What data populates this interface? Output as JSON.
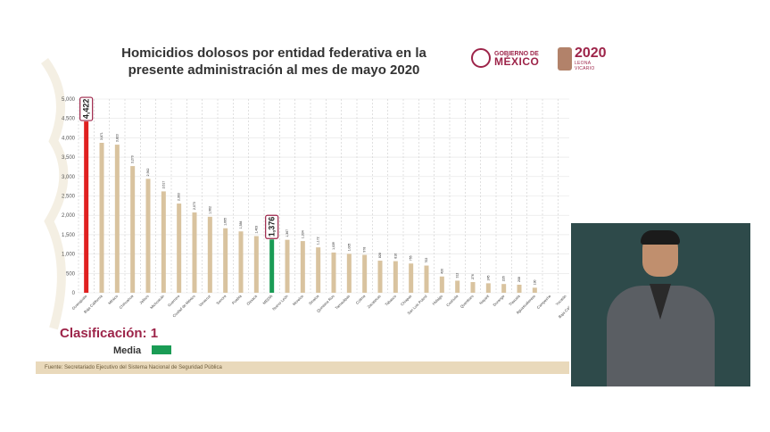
{
  "slide": {
    "title_line1": "Homicidios dolosos por entidad federativa en la",
    "title_line2": "presente administración al mes de mayo 2020",
    "gob_line1": "GOBIERNO DE",
    "gob_line2": "MÉXICO",
    "year_logo": "2020",
    "year_logo_sub": "LEONA VICARIO",
    "clasificacion": "Clasificación: 1",
    "media_label": "Media",
    "footer": "Fuente: Secretariado Ejecutivo del Sistema Nacional de Seguridad Pública"
  },
  "colors": {
    "highlight": "#e02020",
    "media": "#1a9c55",
    "bar": "#d9c39f",
    "accent": "#9d2449"
  },
  "chart_data": {
    "type": "bar",
    "ylim": [
      0,
      5000
    ],
    "yticks": [
      "0",
      "500",
      "1,000",
      "1,500",
      "2,000",
      "2,500",
      "3,000",
      "3,500",
      "4,000",
      "4,500",
      "5,000"
    ],
    "categories": [
      "Guanajuato",
      "Baja California",
      "México",
      "Chihuahua",
      "Jalisco",
      "Michoacán",
      "Guerrero",
      "Ciudad de México",
      "Veracruz",
      "Sonora",
      "Puebla",
      "Oaxaca",
      "MEDIA",
      "Nuevo León",
      "Morelos",
      "Sinaloa",
      "Quintana Roo",
      "Tamaulipas",
      "Colima",
      "Zacatecas",
      "Tabasco",
      "Chiapas",
      "San Luis Potosí",
      "Hidalgo",
      "Coahuila",
      "Querétaro",
      "Nayarit",
      "Durango",
      "Tlaxcala",
      "Aguascalientes",
      "Campeche",
      "Yucatán",
      "Baja California Sur"
    ],
    "values": [
      4422,
      3871,
      3823,
      3270,
      2942,
      2617,
      2303,
      2073,
      1962,
      1665,
      1584,
      1463,
      1376,
      1367,
      1334,
      1172,
      1039,
      1005,
      978,
      828,
      816,
      755,
      702,
      420,
      312,
      276,
      245,
      226,
      208,
      130,
      null,
      null,
      null
    ],
    "value_labels": [
      "4,422",
      "3,871",
      "3,823",
      "3,270",
      "2,942",
      "2,617",
      "2,303",
      "2,073",
      "1,962",
      "1,665",
      "1,584",
      "1,463",
      "1,376",
      "1,367",
      "1,334",
      "1,172",
      "1,039",
      "1,005",
      "978",
      "828",
      "816",
      "755",
      "702",
      "420",
      "312",
      "276",
      "245",
      "226",
      "208",
      "130",
      "",
      "",
      ""
    ],
    "highlight_index": 0,
    "media_index": 12,
    "grid": true
  }
}
